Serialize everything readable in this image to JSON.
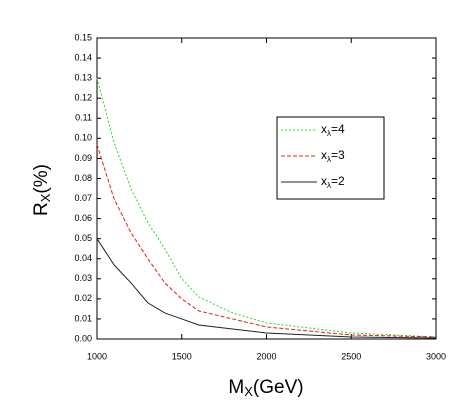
{
  "chart_data": {
    "type": "line",
    "xlabel": "MX(GeV)",
    "ylabel": "RX(%)",
    "x": [
      1000,
      1100,
      1200,
      1300,
      1400,
      1500,
      1600,
      1800,
      2000,
      2500,
      3000
    ],
    "series": [
      {
        "name": "xλ=4",
        "color": "#22dd22",
        "dash": "2,2",
        "values": [
          0.13,
          0.098,
          0.075,
          0.058,
          0.045,
          0.03,
          0.021,
          0.013,
          0.008,
          0.003,
          0.001
        ]
      },
      {
        "name": "xλ=3",
        "color": "#dd2222",
        "dash": "4,2",
        "values": [
          0.097,
          0.07,
          0.053,
          0.04,
          0.028,
          0.02,
          0.014,
          0.01,
          0.006,
          0.002,
          0.001
        ]
      },
      {
        "name": "xλ=2",
        "color": "#222222",
        "dash": "none",
        "values": [
          0.05,
          0.037,
          0.028,
          0.018,
          0.013,
          0.01,
          0.007,
          0.005,
          0.003,
          0.001,
          0.0005
        ]
      }
    ],
    "xlim": [
      1000,
      3000
    ],
    "xticks": [
      1000,
      1500,
      2000,
      2500,
      3000
    ],
    "ylim": [
      0,
      0.15
    ],
    "yticks": [
      {
        "value": 0,
        "label": "0.00"
      },
      0.01,
      0.02,
      0.03,
      0.04,
      0.05,
      0.06,
      0.07,
      0.08,
      0.09,
      {
        "value": 0.1,
        "label": "0.10"
      },
      0.11,
      0.12,
      0.13,
      0.14,
      0.15
    ],
    "grid": false,
    "legend": "upper right"
  }
}
